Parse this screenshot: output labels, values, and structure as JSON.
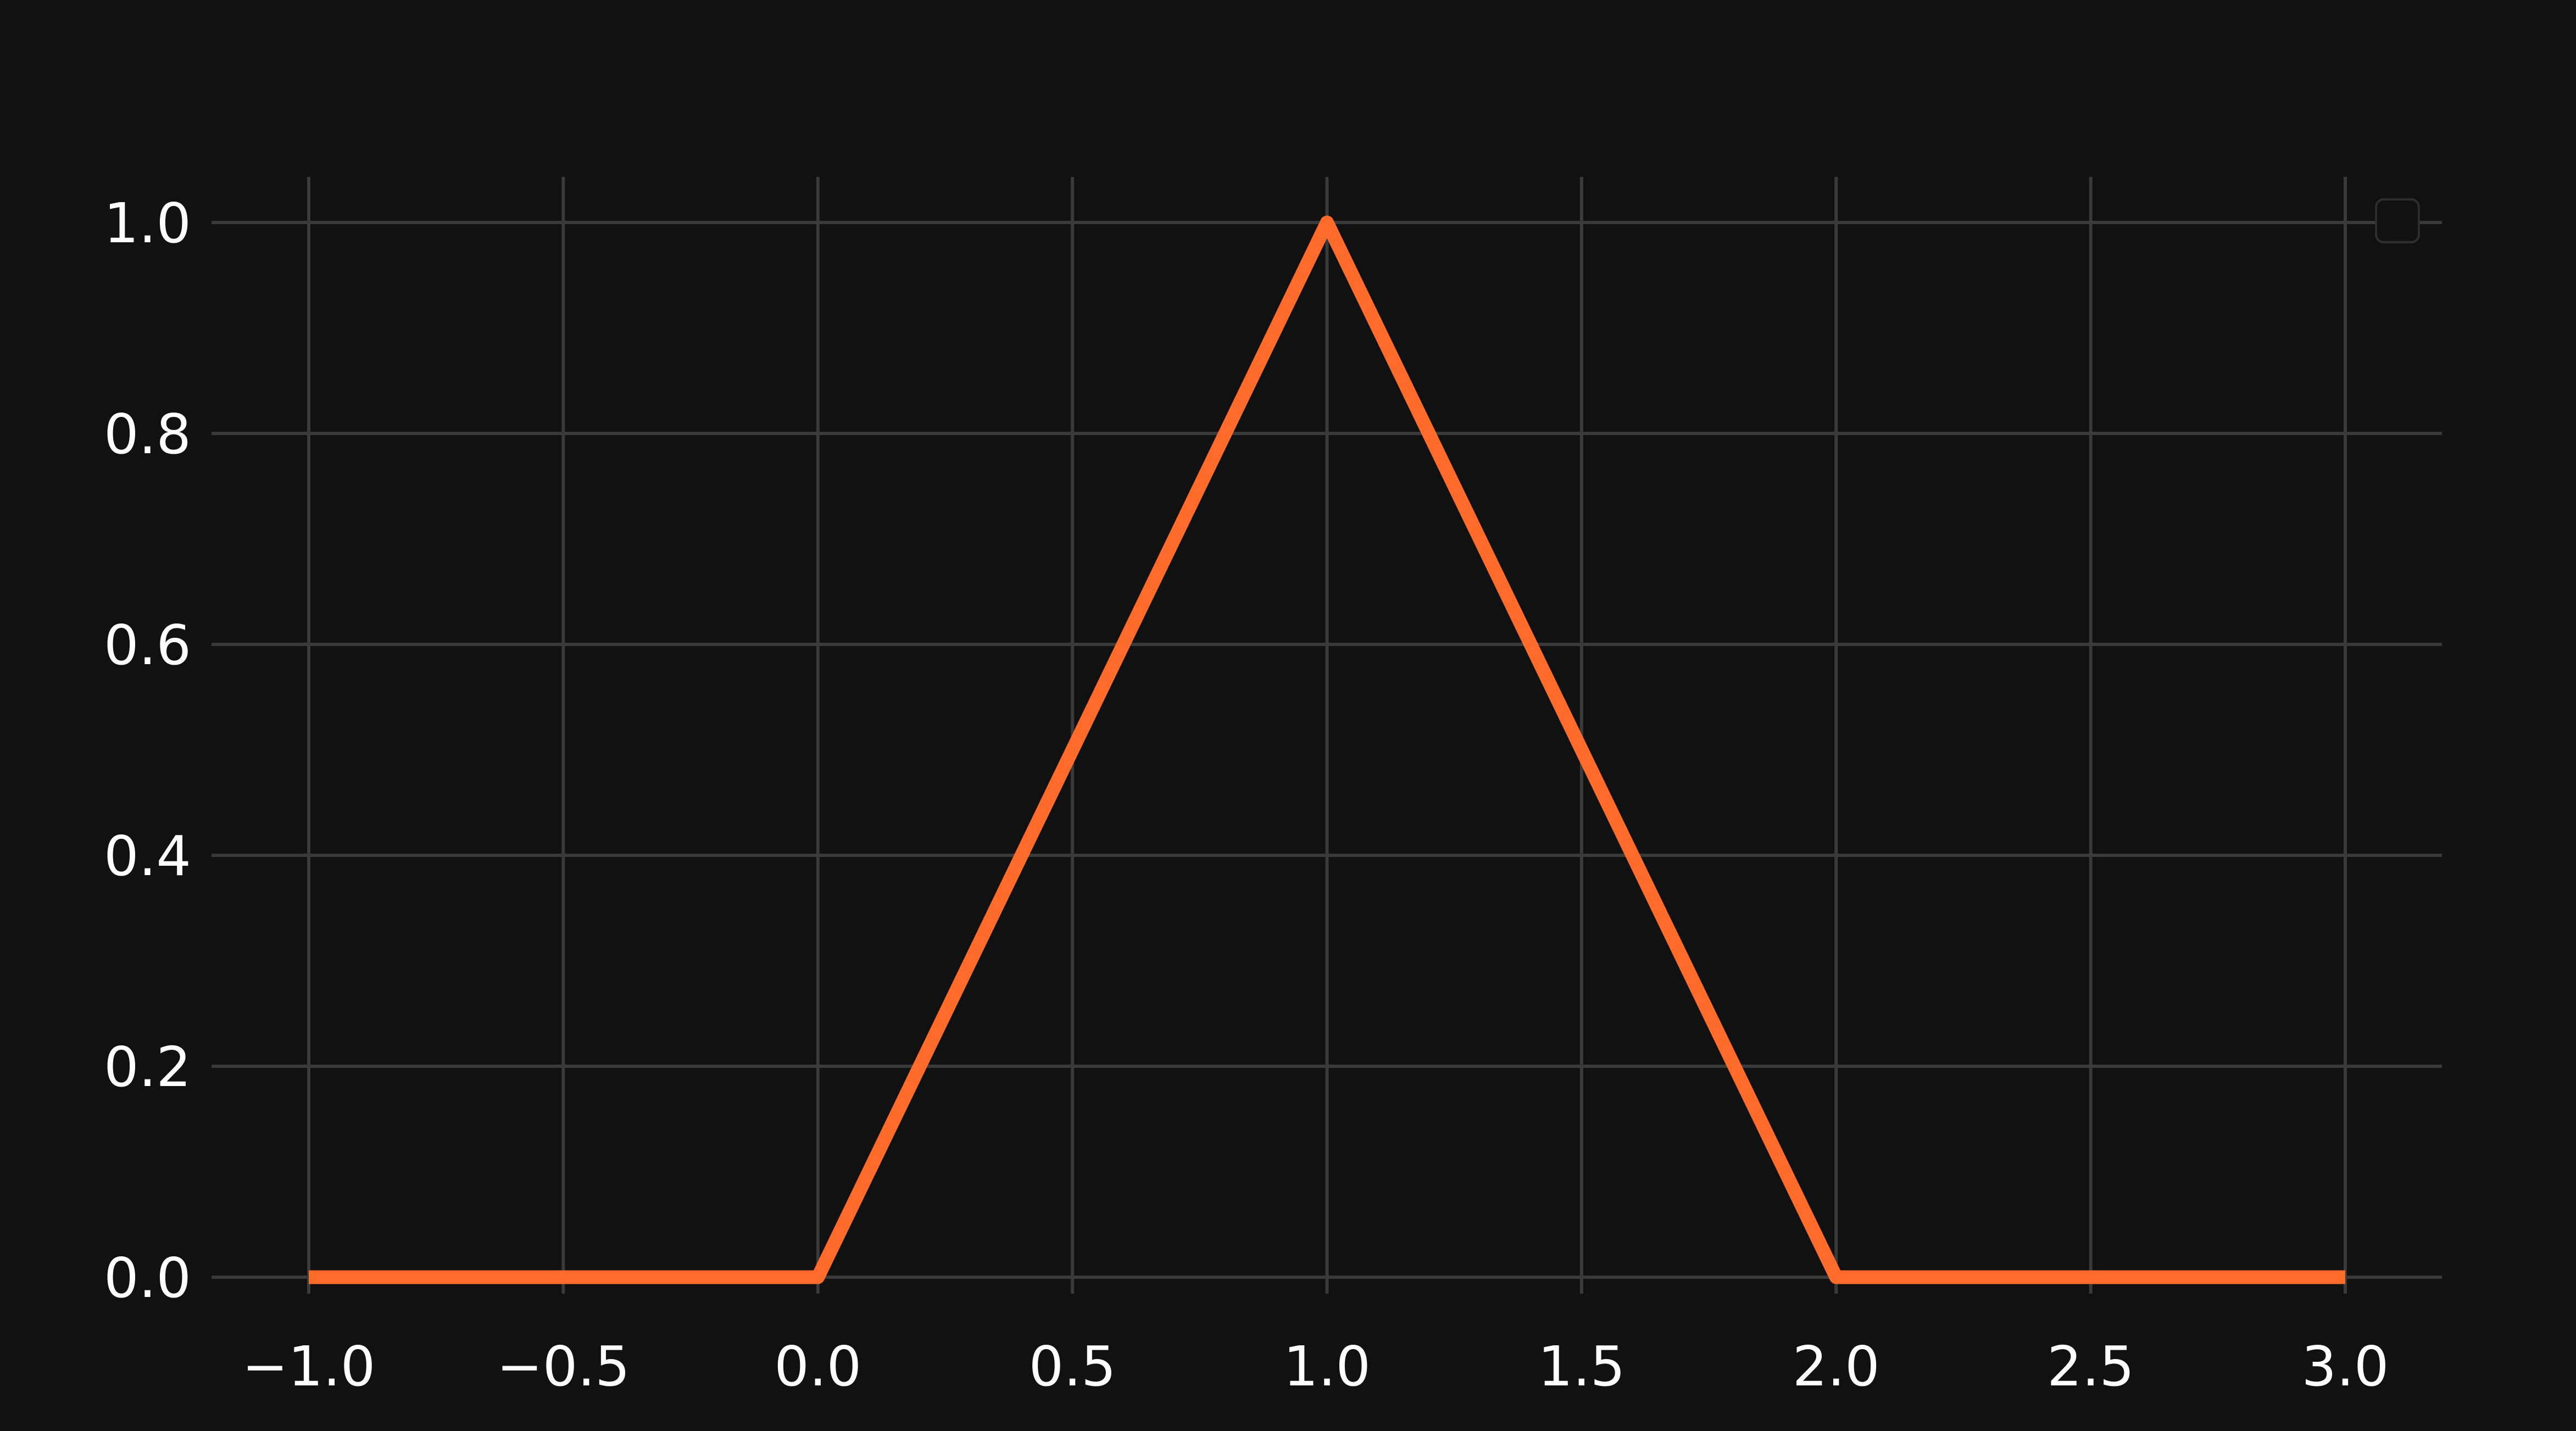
{
  "colors": {
    "background": "#111111",
    "grid": "#3a3a3a",
    "text": "#ffffff",
    "series": "#ff6b2b",
    "legend_border": "#2e2e2e"
  },
  "chart_data": {
    "type": "line",
    "title": "",
    "xlabel": "",
    "ylabel": "",
    "xlim": [
      -1.0,
      3.0
    ],
    "ylim": [
      0.0,
      1.0
    ],
    "grid": true,
    "legend": "top-right",
    "xticks": [
      -1.0,
      -0.5,
      0.0,
      0.5,
      1.0,
      1.5,
      2.0,
      2.5,
      3.0
    ],
    "xtick_labels": [
      "−1.0",
      "−0.5",
      "0.0",
      "0.5",
      "1.0",
      "1.5",
      "2.0",
      "2.5",
      "3.0"
    ],
    "yticks": [
      0.0,
      0.2,
      0.4,
      0.6,
      0.8,
      1.0
    ],
    "ytick_labels": [
      "0.0",
      "0.2",
      "0.4",
      "0.6",
      "0.8",
      "1.0"
    ],
    "series": [
      {
        "x": [
          -1.0,
          0.0,
          1.0,
          2.0,
          3.0
        ],
        "y": [
          0.0,
          0.0,
          1.0,
          0.0,
          0.0
        ]
      }
    ]
  }
}
